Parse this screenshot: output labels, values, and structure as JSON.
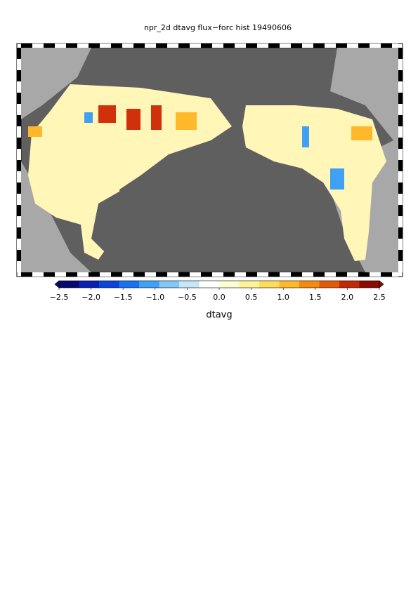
{
  "title": "npr_2d dtavg flux−forc hist 19490606",
  "colorbar": {
    "label": "dtavg",
    "clim": [
      -2.5,
      2.5
    ],
    "colors": [
      "#08086e",
      "#0a1fb4",
      "#0c45dc",
      "#1a72ee",
      "#3fa0f5",
      "#82c8f7",
      "#c4e6f8",
      "#ffffff",
      "#fffdd0",
      "#fff39a",
      "#ffdc5a",
      "#ffb82a",
      "#f58a10",
      "#e25a08",
      "#c02a04",
      "#8c0a02"
    ],
    "ticks": [
      {
        "value": -2.5,
        "label": "−2.5"
      },
      {
        "value": -2.0,
        "label": "−2.0"
      },
      {
        "value": -1.5,
        "label": "−1.5"
      },
      {
        "value": -1.0,
        "label": "−1.0"
      },
      {
        "value": -0.5,
        "label": "−0.5"
      },
      {
        "value": 0,
        "label": "0.0"
      },
      0.5,
      {
        "value": 1.0,
        "label": "1.0"
      },
      1.5,
      {
        "value": 2.0,
        "label": "2.0"
      },
      2.5
    ]
  }
}
